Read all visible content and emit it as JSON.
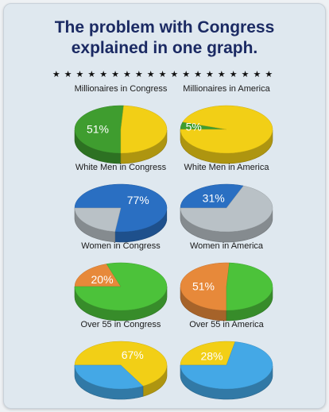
{
  "title_line1": "The problem with Congress",
  "title_line2": "explained in one graph.",
  "stars": "★★★★★★★★★★★★★★★★★★★",
  "colors": {
    "green": "#3f9d2f",
    "yellow": "#f2cf16",
    "blue": "#2a6fc2",
    "gray": "#b9c1c6",
    "bright_green": "#4cc23a",
    "orange": "#e7893a",
    "sky": "#44a8e6"
  },
  "chart_data": [
    {
      "type": "pie",
      "title": "Millionaires in Congress",
      "highlight_label": "51%",
      "slices": [
        {
          "value": 51,
          "color": "#3f9d2f"
        },
        {
          "value": 49,
          "color": "#f2cf16"
        }
      ]
    },
    {
      "type": "pie",
      "title": "Millionaires in America",
      "highlight_label": "5%",
      "slices": [
        {
          "value": 5,
          "color": "#3f9d2f"
        },
        {
          "value": 95,
          "color": "#f2cf16"
        }
      ]
    },
    {
      "type": "pie",
      "title": "White Men in Congress",
      "highlight_label": "77%",
      "slices": [
        {
          "value": 77,
          "color": "#2a6fc2"
        },
        {
          "value": 23,
          "color": "#b9c1c6"
        }
      ]
    },
    {
      "type": "pie",
      "title": "White Men in America",
      "highlight_label": "31%",
      "slices": [
        {
          "value": 31,
          "color": "#2a6fc2"
        },
        {
          "value": 69,
          "color": "#b9c1c6"
        }
      ]
    },
    {
      "type": "pie",
      "title": "Women in Congress",
      "highlight_label": "20%",
      "slices": [
        {
          "value": 20,
          "color": "#e7893a"
        },
        {
          "value": 80,
          "color": "#4cc23a"
        }
      ]
    },
    {
      "type": "pie",
      "title": "Women in America",
      "highlight_label": "51%",
      "slices": [
        {
          "value": 51,
          "color": "#e7893a"
        },
        {
          "value": 49,
          "color": "#4cc23a"
        }
      ]
    },
    {
      "type": "pie",
      "title": "Over 55 in Congress",
      "highlight_label": "67%",
      "slices": [
        {
          "value": 67,
          "color": "#f2cf16"
        },
        {
          "value": 33,
          "color": "#44a8e6"
        }
      ]
    },
    {
      "type": "pie",
      "title": "Over 55 in America",
      "highlight_label": "28%",
      "slices": [
        {
          "value": 28,
          "color": "#f2cf16"
        },
        {
          "value": 72,
          "color": "#44a8e6"
        }
      ]
    }
  ]
}
